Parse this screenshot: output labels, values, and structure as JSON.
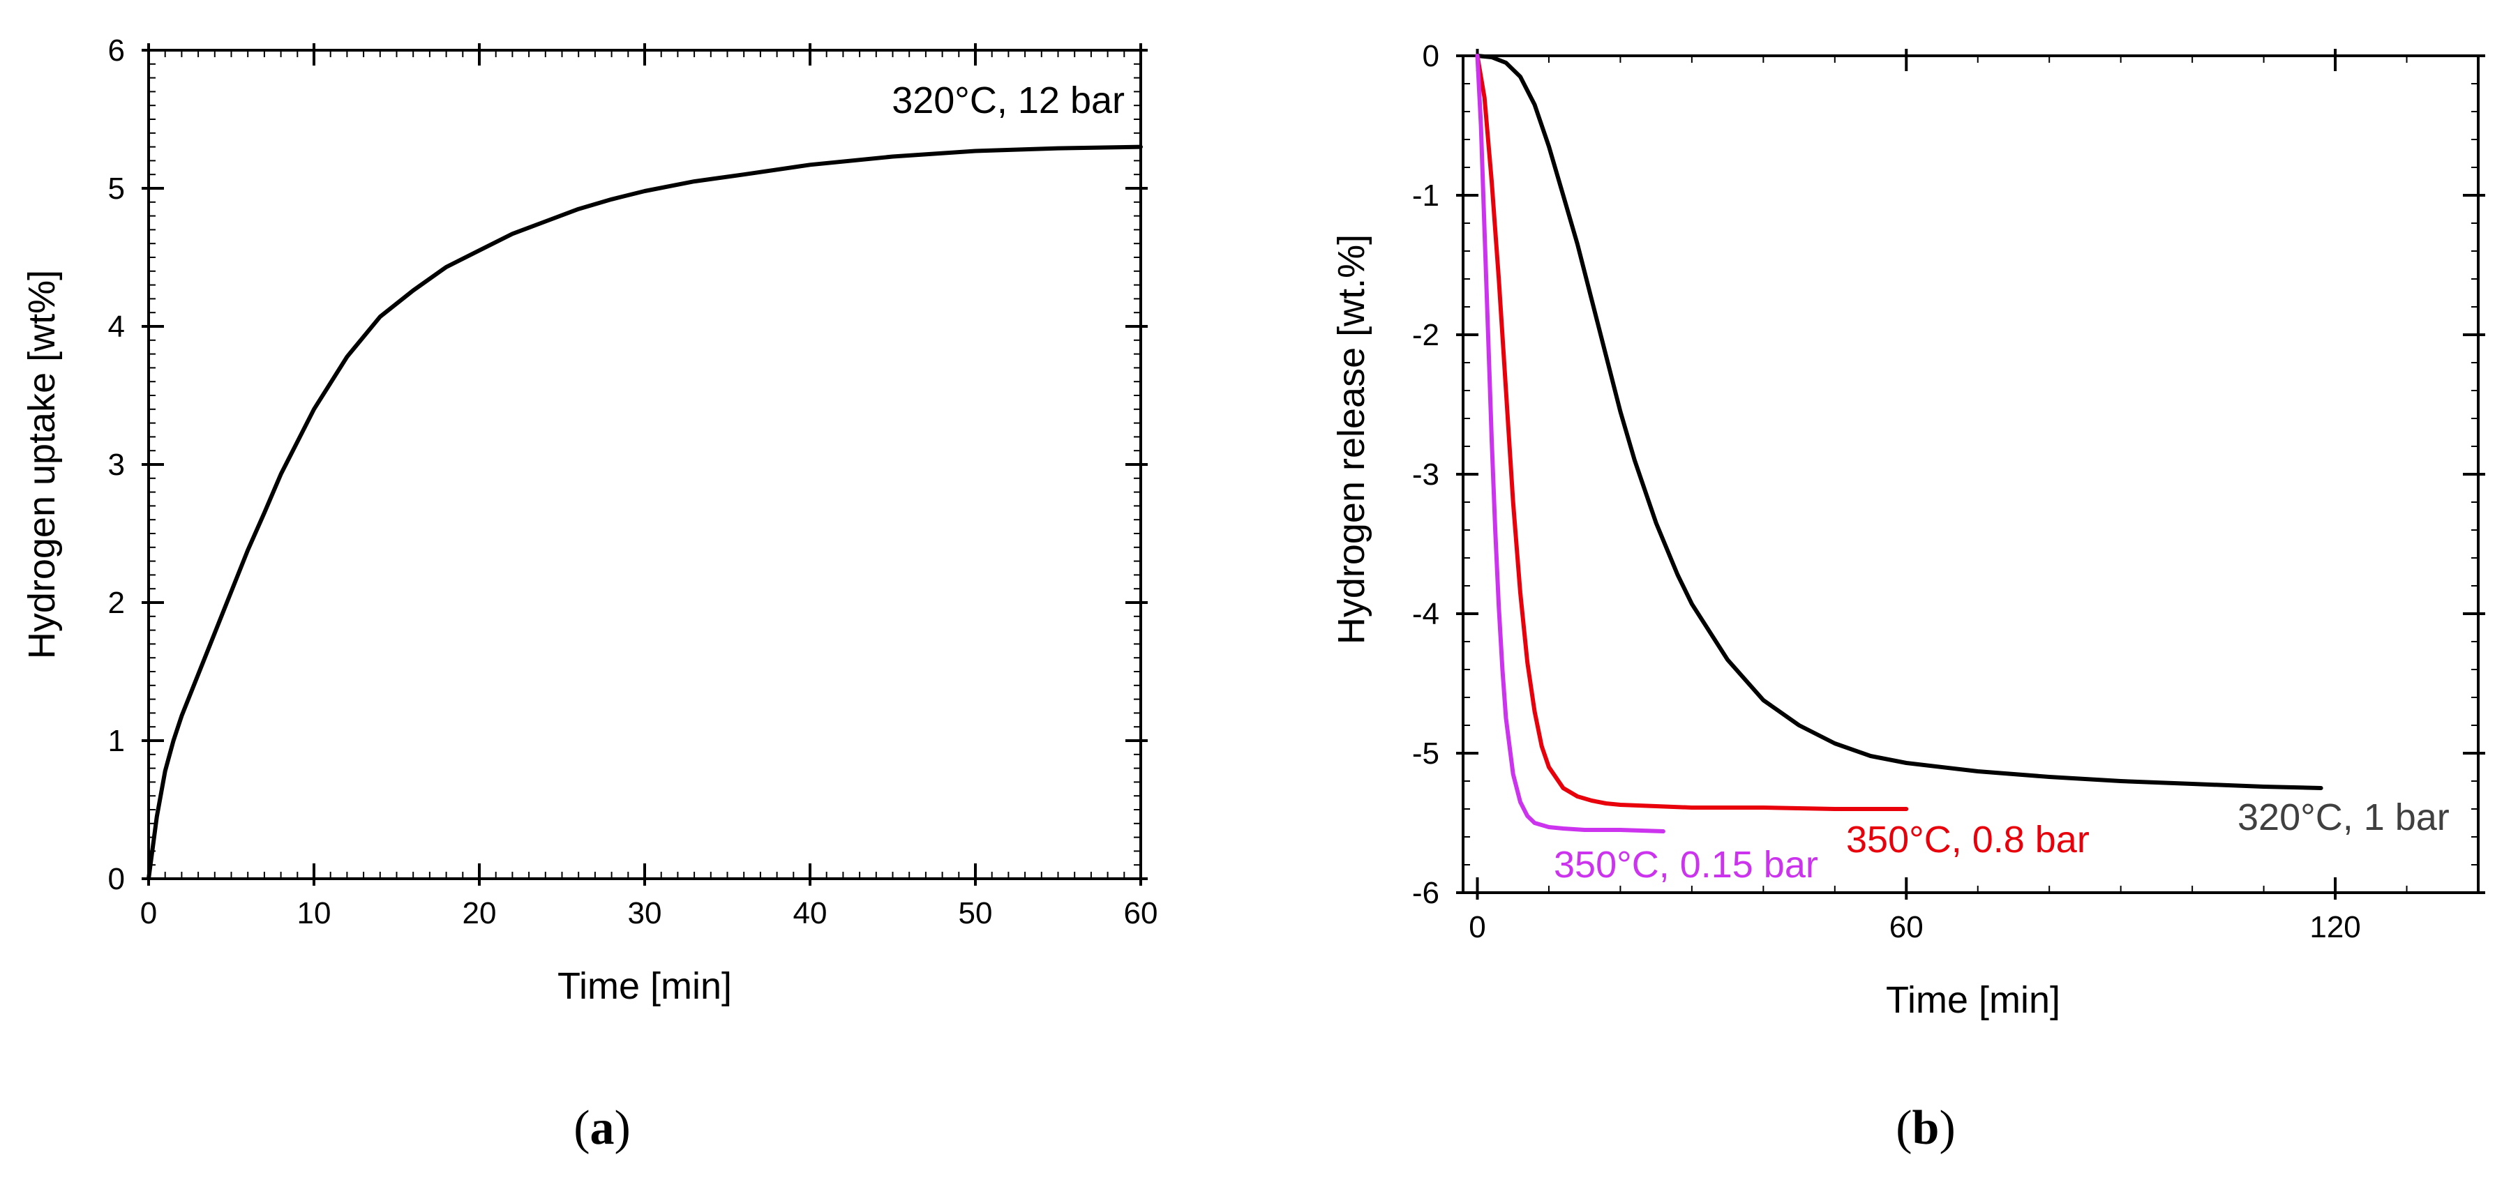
{
  "figure": {
    "panels": [
      {
        "label_open": "(",
        "label_letter": "a",
        "label_close": ")"
      },
      {
        "label_open": "(",
        "label_letter": "b",
        "label_close": ")"
      }
    ]
  },
  "chart_data": [
    {
      "type": "line",
      "panel": "a",
      "title": "",
      "xlabel": "Time [min]",
      "ylabel": "Hydrogen uptake [wt%]",
      "xlim": [
        0,
        60
      ],
      "ylim": [
        0,
        6
      ],
      "xticks": [
        "0",
        "10",
        "20",
        "30",
        "40",
        "50",
        "60"
      ],
      "yticks": [
        "0",
        "1",
        "2",
        "3",
        "4",
        "5",
        "6"
      ],
      "grid": false,
      "annotations": [
        {
          "text": "320°C, 12 bar",
          "color": "#000000",
          "x": 59,
          "y": 5.62
        }
      ],
      "series": [
        {
          "name": "320°C, 12 bar",
          "color": "#000000",
          "x": [
            0,
            0.5,
            1,
            1.5,
            2,
            3,
            4,
            5,
            6,
            7,
            8,
            10,
            12,
            14,
            16,
            18,
            20,
            22,
            24,
            26,
            28,
            30,
            33,
            36,
            40,
            45,
            50,
            55,
            60
          ],
          "y": [
            0,
            0.45,
            0.78,
            1.0,
            1.18,
            1.48,
            1.78,
            2.08,
            2.38,
            2.65,
            2.93,
            3.4,
            3.78,
            4.07,
            4.26,
            4.43,
            4.55,
            4.67,
            4.76,
            4.85,
            4.92,
            4.98,
            5.05,
            5.1,
            5.17,
            5.23,
            5.27,
            5.29,
            5.3
          ]
        }
      ]
    },
    {
      "type": "line",
      "panel": "b",
      "title": "",
      "xlabel": "Time [min]",
      "ylabel": "Hydrogen release [wt.%]",
      "xlim": [
        -2,
        140
      ],
      "ylim": [
        -6,
        0
      ],
      "xticks": [
        "0",
        "60",
        "120"
      ],
      "yticks": [
        "0",
        "-1",
        "-2",
        "-3",
        "-4",
        "-5",
        "-6"
      ],
      "grid": false,
      "annotations": [
        {
          "text": "320°C, 1 bar",
          "color": "#404040",
          "x": 107,
          "y": -5.55
        },
        {
          "text": "350°C, 0.8 bar",
          "color": "#e8000b",
          "x": 50,
          "y": -5.72
        },
        {
          "text": "350°C, 0.15 bar",
          "color": "#cc33ee",
          "x": 8.5,
          "y": -5.93
        }
      ],
      "series": [
        {
          "name": "320°C, 1 bar",
          "color": "#000000",
          "x": [
            0,
            2,
            4,
            6,
            8,
            10,
            12,
            14,
            16,
            18,
            20,
            22,
            25,
            28,
            30,
            35,
            40,
            45,
            50,
            55,
            60,
            70,
            80,
            90,
            100,
            110,
            118
          ],
          "y": [
            0,
            -0.01,
            -0.05,
            -0.15,
            -0.35,
            -0.65,
            -1.0,
            -1.35,
            -1.75,
            -2.15,
            -2.55,
            -2.9,
            -3.35,
            -3.72,
            -3.93,
            -4.33,
            -4.62,
            -4.8,
            -4.93,
            -5.02,
            -5.07,
            -5.13,
            -5.17,
            -5.2,
            -5.22,
            -5.24,
            -5.25
          ]
        },
        {
          "name": "350°C, 0.8 bar",
          "color": "#e8000b",
          "x": [
            0,
            1,
            2,
            3,
            4,
            5,
            6,
            7,
            8,
            9,
            10,
            12,
            14,
            16,
            18,
            20,
            25,
            30,
            40,
            50,
            60
          ],
          "y": [
            0,
            -0.3,
            -0.9,
            -1.6,
            -2.4,
            -3.2,
            -3.85,
            -4.35,
            -4.7,
            -4.95,
            -5.1,
            -5.25,
            -5.31,
            -5.34,
            -5.36,
            -5.37,
            -5.38,
            -5.39,
            -5.39,
            -5.4,
            -5.4
          ]
        },
        {
          "name": "350°C, 0.15 bar",
          "color": "#cc33ee",
          "x": [
            0,
            0.5,
            1,
            1.5,
            2,
            2.5,
            3,
            3.5,
            4,
            5,
            6,
            7,
            8,
            10,
            12,
            15,
            20,
            26
          ],
          "y": [
            0,
            -0.5,
            -1.25,
            -2.0,
            -2.75,
            -3.4,
            -3.95,
            -4.4,
            -4.75,
            -5.15,
            -5.35,
            -5.45,
            -5.5,
            -5.53,
            -5.54,
            -5.55,
            -5.55,
            -5.56
          ]
        }
      ]
    }
  ]
}
